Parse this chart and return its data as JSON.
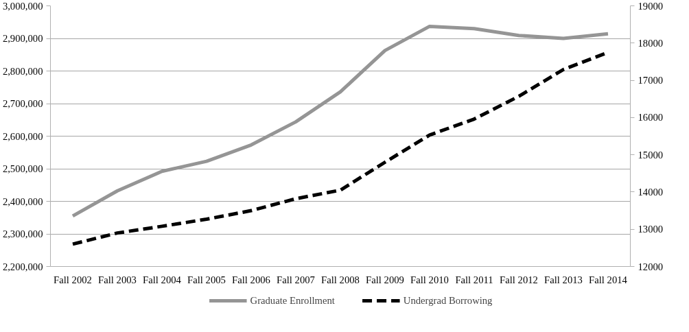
{
  "chart_data": {
    "type": "line",
    "categories": [
      "Fall 2002",
      "Fall 2003",
      "Fall 2004",
      "Fall 2005",
      "Fall 2006",
      "Fall 2007",
      "Fall 2008",
      "Fall 2009",
      "Fall 2010",
      "Fall 2011",
      "Fall 2012",
      "Fall 2013",
      "Fall 2014"
    ],
    "series": [
      {
        "name": "Graduate Enrollment",
        "color": "#959595",
        "line_style": "solid",
        "values": [
          2355000,
          2432000,
          2492000,
          2523000,
          2573000,
          2644000,
          2736000,
          2863000,
          2937000,
          2930000,
          2909000,
          2900000,
          2914000
        ]
      },
      {
        "name": "Undergrad Borrowing",
        "color": "#000000",
        "line_style": "dashed",
        "axis": "y2",
        "values": [
          12600,
          12900,
          13080,
          13270,
          13500,
          13820,
          14050,
          14800,
          15530,
          15960,
          16570,
          17290,
          17750
        ]
      }
    ],
    "ylim": [
      2200000,
      3000000
    ],
    "yticks": [
      {
        "value": 2200000,
        "label": "2,200,000"
      },
      {
        "value": 2300000,
        "label": "2,300,000"
      },
      {
        "value": 2400000,
        "label": "2,400,000"
      },
      {
        "value": 2500000,
        "label": "2,500,000"
      },
      {
        "value": 2600000,
        "label": "2,600,000"
      },
      {
        "value": 2700000,
        "label": "2,700,000"
      },
      {
        "value": 2800000,
        "label": "2,800,000"
      },
      {
        "value": 2900000,
        "label": "2,900,000"
      },
      {
        "value": 3000000,
        "label": "3,000,000"
      }
    ],
    "y2lim": [
      12000,
      19000
    ],
    "y2ticks": [
      12000,
      13000,
      14000,
      15000,
      16000,
      17000,
      18000,
      19000
    ],
    "grid": "y",
    "legend": "bottom",
    "marker": "none"
  }
}
